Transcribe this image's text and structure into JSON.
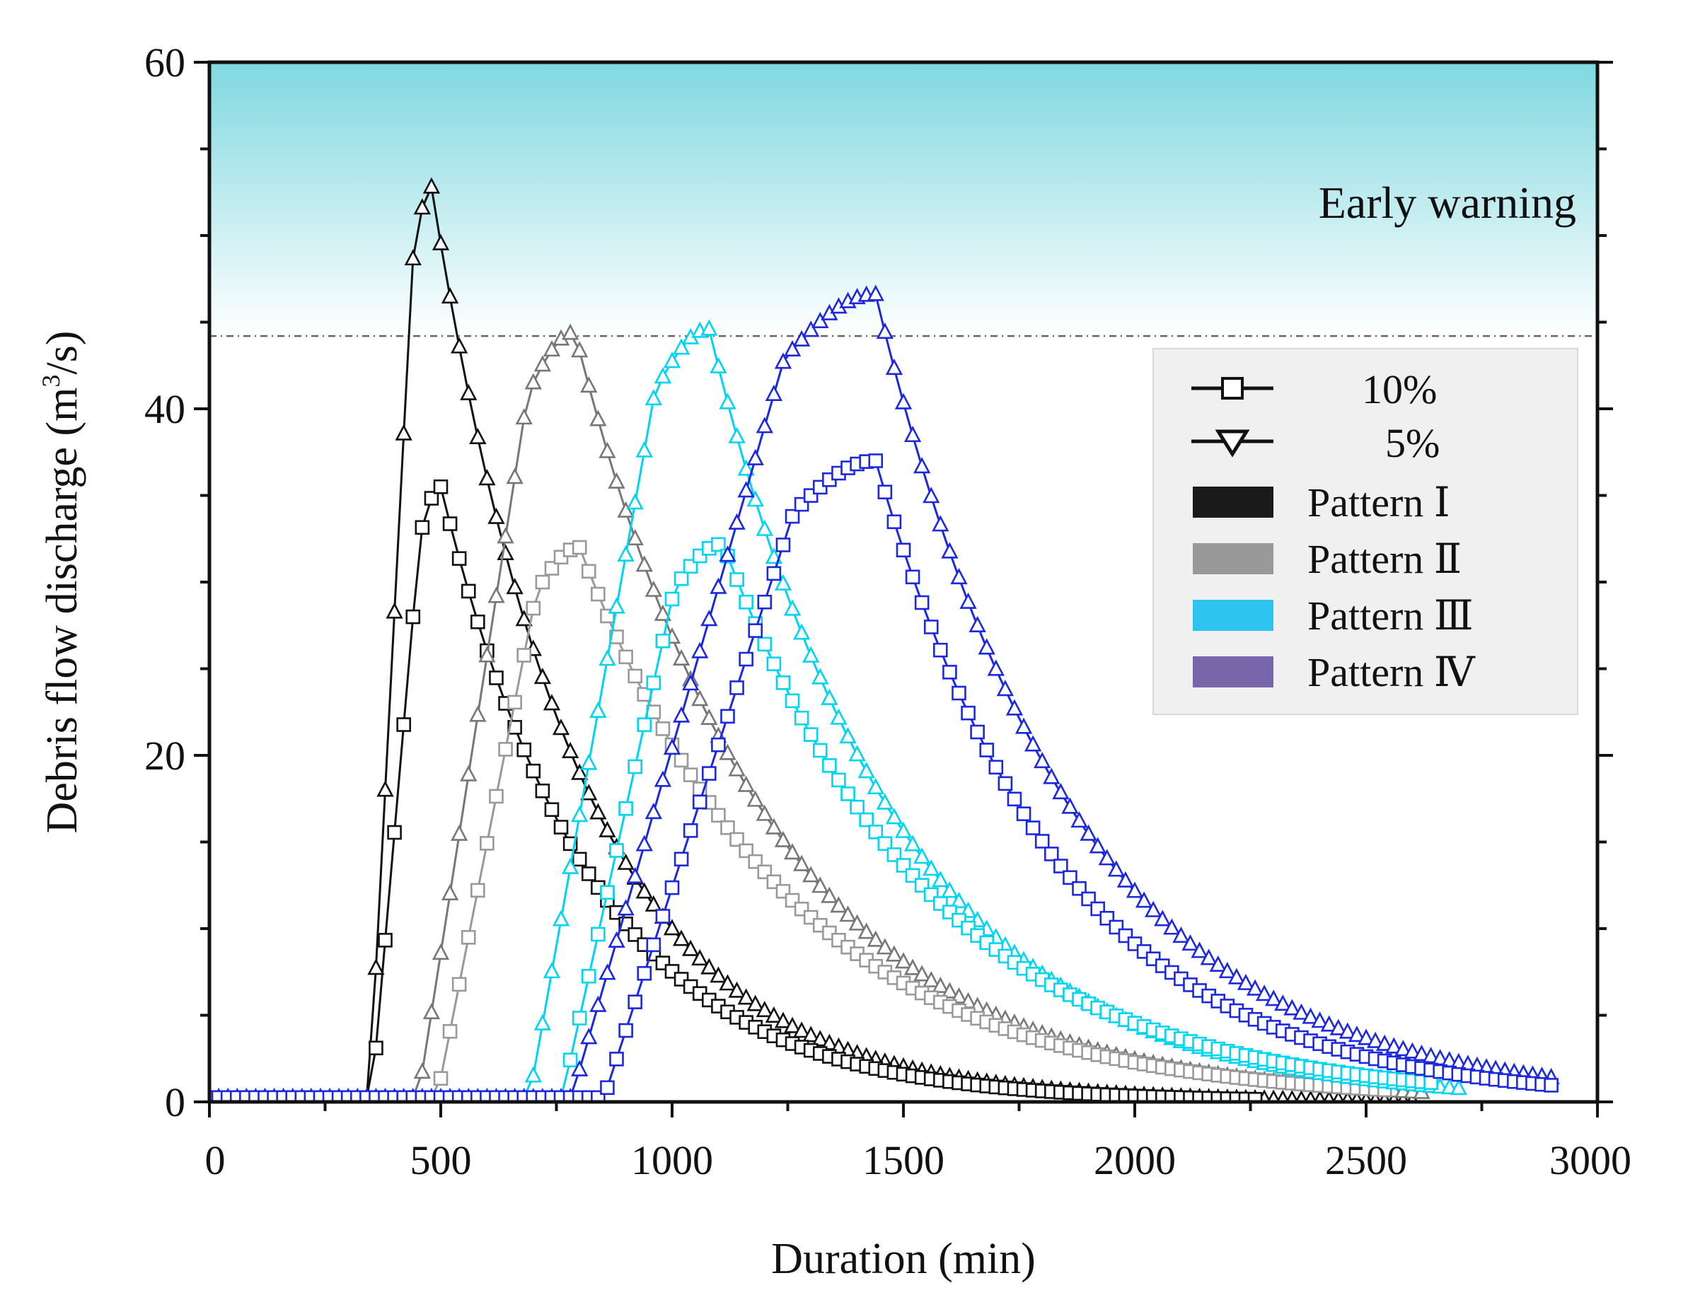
{
  "chart_data": {
    "type": "line",
    "xlabel": "Duration (min)",
    "ylabel_main": "Debris flow discharge (m",
    "ylabel_sup": "3",
    "ylabel_tail": "/s)",
    "xlim": [
      0,
      3000
    ],
    "ylim": [
      0,
      60
    ],
    "xticks": [
      0,
      500,
      1000,
      1500,
      2000,
      2500,
      3000
    ],
    "yticks": [
      0,
      20,
      40,
      60
    ],
    "xtick_labels": [
      "0",
      "500",
      "1000",
      "1500",
      "2000",
      "2500",
      "3000"
    ],
    "ytick_labels": [
      "0",
      "20",
      "40",
      "60"
    ],
    "warning_threshold": 44.2,
    "warning_label": "Early warning",
    "warning_colors": {
      "top": "#7fd8e0",
      "bottom": "#ffffff",
      "line": "#666666"
    },
    "legend": {
      "placement": "right",
      "markers": [
        {
          "label": "10%",
          "marker": "square"
        },
        {
          "label": "5%",
          "marker": "triangle-down"
        }
      ],
      "patterns": [
        {
          "label": "Pattern Ⅰ",
          "color": "#1a1a1a"
        },
        {
          "label": "Pattern Ⅱ",
          "color": "#999999"
        },
        {
          "label": "Pattern Ⅲ",
          "color": "#2ec4f0"
        },
        {
          "label": "Pattern Ⅳ",
          "color": "#7766aa"
        }
      ]
    },
    "series": [
      {
        "name": "Pattern Ⅰ 5%",
        "color": "#111111",
        "marker": "triangle",
        "shape": {
          "start": 345,
          "peak_t": 480,
          "peak": 52.8,
          "end": 2600,
          "k": 0.0032
        }
      },
      {
        "name": "Pattern Ⅰ 10%",
        "color": "#111111",
        "marker": "square",
        "shape": {
          "start": 350,
          "peak_t": 500,
          "peak": 35.5,
          "end": 2260,
          "k": 0.0031
        }
      },
      {
        "name": "Pattern Ⅱ 5%",
        "color": "#777777",
        "marker": "triangle",
        "shape": {
          "start": 450,
          "peak_t": 790,
          "peak": 44.4,
          "end": 2620,
          "k": 0.0024
        }
      },
      {
        "name": "Pattern Ⅱ 10%",
        "color": "#999999",
        "marker": "square",
        "shape": {
          "start": 490,
          "peak_t": 800,
          "peak": 32.0,
          "end": 2550,
          "k": 0.0022
        }
      },
      {
        "name": "Pattern Ⅲ 5%",
        "color": "#00d5f0",
        "marker": "triangle",
        "shape": {
          "start": 690,
          "peak_t": 1080,
          "peak": 44.6,
          "end": 2700,
          "k": 0.0025
        }
      },
      {
        "name": "Pattern Ⅲ 10%",
        "color": "#00d5f0",
        "marker": "square",
        "shape": {
          "start": 760,
          "peak_t": 1110,
          "peak": 32.2,
          "end": 2640,
          "k": 0.0022
        }
      },
      {
        "name": "Pattern Ⅳ 5%",
        "color": "#1c28e0",
        "marker": "triangle",
        "shape": {
          "start": 780,
          "peak_t": 1440,
          "peak": 46.6,
          "end": 2900,
          "k": 0.0024
        }
      },
      {
        "name": "Pattern Ⅳ 10%",
        "color": "#1c28e0",
        "marker": "square",
        "shape": {
          "start": 850,
          "peak_t": 1440,
          "peak": 37.0,
          "end": 2900,
          "k": 0.0025
        }
      }
    ]
  }
}
